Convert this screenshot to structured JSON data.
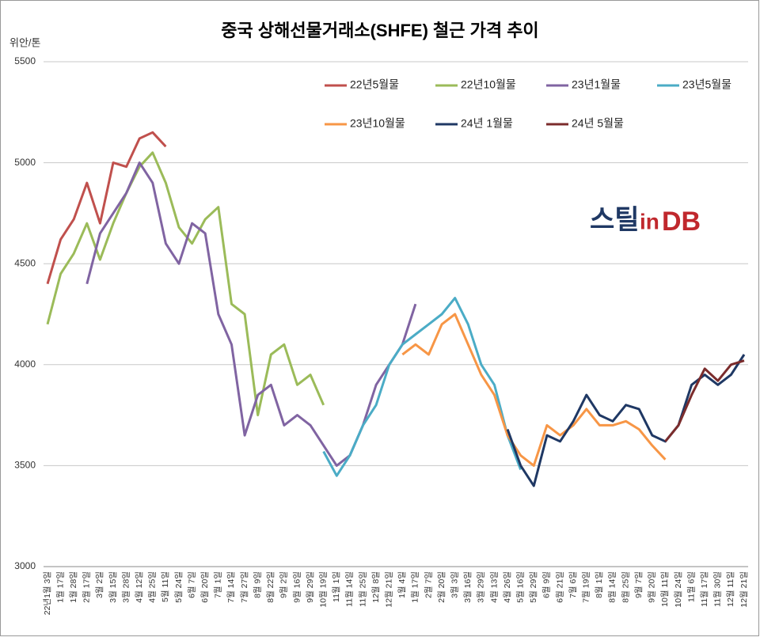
{
  "chart_data": {
    "type": "line",
    "title": "중국 상해선물거래소(SHFE) 철근 가격 추이",
    "y_axis_label": "위안/톤",
    "logo": {
      "part1": "스틸",
      "part2": "in",
      "part3": "DB"
    },
    "categories": [
      "22년1월 3일",
      "1월 17일",
      "1월 28일",
      "2월 17일",
      "3월 2일",
      "3월 15일",
      "3월 28일",
      "4월 12일",
      "4월 25일",
      "5월 11일",
      "5월 24일",
      "6월 7일",
      "6월 20일",
      "7월 1일",
      "7월 14일",
      "7월 27일",
      "8월 9일",
      "8월 22일",
      "9월 2일",
      "9월 16일",
      "9월 29일",
      "10월 19일",
      "11월 1일",
      "11월 14일",
      "11월 25일",
      "12월 8일",
      "12월 21일",
      "1월 4일",
      "1월 17일",
      "2월 7일",
      "2월 20일",
      "3월 3일",
      "3월 16일",
      "3월 29일",
      "4월 13일",
      "4월 26일",
      "5월 16일",
      "5월 29일",
      "6월 9일",
      "6월 21일",
      "7월 6일",
      "7월 19일",
      "8월 1일",
      "8월 14일",
      "8월 25일",
      "9월 7일",
      "9월 20일",
      "10월 11일",
      "10월 24일",
      "11월 6일",
      "11월 17일",
      "11월 30일",
      "12월 11일",
      "12월 21일"
    ],
    "series": [
      {
        "name": "22년5월물",
        "color": "#c0504d",
        "values": [
          4400,
          4620,
          4720,
          4900,
          4700,
          5000,
          4980,
          5120,
          5150,
          5080,
          null,
          null,
          null,
          null,
          null,
          null,
          null,
          null,
          null,
          null,
          null,
          null,
          null,
          null,
          null,
          null,
          null,
          null,
          null,
          null,
          null,
          null,
          null,
          null,
          null,
          null,
          null,
          null,
          null,
          null,
          null,
          null,
          null,
          null,
          null,
          null,
          null,
          null,
          null,
          null,
          null,
          null,
          null,
          null
        ]
      },
      {
        "name": "22년10월물",
        "color": "#9bbb59",
        "values": [
          4200,
          4450,
          4550,
          4700,
          4520,
          4700,
          4850,
          4980,
          5050,
          4900,
          4680,
          4600,
          4720,
          4780,
          4300,
          4250,
          3750,
          4050,
          4100,
          3900,
          3950,
          3800,
          null,
          null,
          null,
          null,
          null,
          null,
          null,
          null,
          null,
          null,
          null,
          null,
          null,
          null,
          null,
          null,
          null,
          null,
          null,
          null,
          null,
          null,
          null,
          null,
          null,
          null,
          null,
          null,
          null,
          null,
          null,
          null
        ]
      },
      {
        "name": "23년1월물",
        "color": "#8064a2",
        "values": [
          null,
          null,
          null,
          4400,
          4650,
          4750,
          4850,
          5000,
          4900,
          4600,
          4500,
          4700,
          4650,
          4250,
          4100,
          3650,
          3850,
          3900,
          3700,
          3750,
          3700,
          3600,
          3500,
          3550,
          3700,
          3900,
          4000,
          4100,
          4300,
          null,
          null,
          null,
          null,
          null,
          null,
          null,
          null,
          null,
          null,
          null,
          null,
          null,
          null,
          null,
          null,
          null,
          null,
          null,
          null,
          null,
          null,
          null,
          null,
          null
        ]
      },
      {
        "name": "23년5월물",
        "color": "#4bacc6",
        "values": [
          null,
          null,
          null,
          null,
          null,
          null,
          null,
          null,
          null,
          null,
          null,
          null,
          null,
          null,
          null,
          null,
          null,
          null,
          null,
          null,
          null,
          3570,
          3450,
          3550,
          3700,
          3800,
          4000,
          4100,
          4150,
          4200,
          4250,
          4330,
          4200,
          4000,
          3900,
          3650,
          3480,
          null,
          null,
          null,
          null,
          null,
          null,
          null,
          null,
          null,
          null,
          null,
          null,
          null,
          null,
          null,
          null,
          null
        ]
      },
      {
        "name": "23년10월물",
        "color": "#f79646",
        "values": [
          null,
          null,
          null,
          null,
          null,
          null,
          null,
          null,
          null,
          null,
          null,
          null,
          null,
          null,
          null,
          null,
          null,
          null,
          null,
          null,
          null,
          null,
          null,
          null,
          null,
          null,
          null,
          4050,
          4100,
          4050,
          4200,
          4250,
          4100,
          3950,
          3850,
          3650,
          3550,
          3500,
          3700,
          3650,
          3700,
          3780,
          3700,
          3700,
          3720,
          3680,
          3600,
          3530,
          null,
          null,
          null,
          null,
          null,
          null
        ]
      },
      {
        "name": "24년 1월물",
        "color": "#1f3864",
        "values": [
          null,
          null,
          null,
          null,
          null,
          null,
          null,
          null,
          null,
          null,
          null,
          null,
          null,
          null,
          null,
          null,
          null,
          null,
          null,
          null,
          null,
          null,
          null,
          null,
          null,
          null,
          null,
          null,
          null,
          null,
          null,
          null,
          null,
          null,
          null,
          3680,
          3500,
          3400,
          3650,
          3620,
          3720,
          3850,
          3750,
          3720,
          3800,
          3780,
          3650,
          3620,
          3700,
          3900,
          3950,
          3900,
          3950,
          4050
        ]
      },
      {
        "name": "24년 5월물",
        "color": "#7b2c2c",
        "values": [
          null,
          null,
          null,
          null,
          null,
          null,
          null,
          null,
          null,
          null,
          null,
          null,
          null,
          null,
          null,
          null,
          null,
          null,
          null,
          null,
          null,
          null,
          null,
          null,
          null,
          null,
          null,
          null,
          null,
          null,
          null,
          null,
          null,
          null,
          null,
          null,
          null,
          null,
          null,
          null,
          null,
          null,
          null,
          null,
          null,
          null,
          null,
          3620,
          3700,
          3850,
          3980,
          3920,
          4000,
          4020
        ]
      }
    ],
    "ylim": [
      3000,
      5500
    ],
    "yticks": [
      3000,
      3500,
      4000,
      4500,
      5000,
      5500
    ],
    "grid": true
  }
}
